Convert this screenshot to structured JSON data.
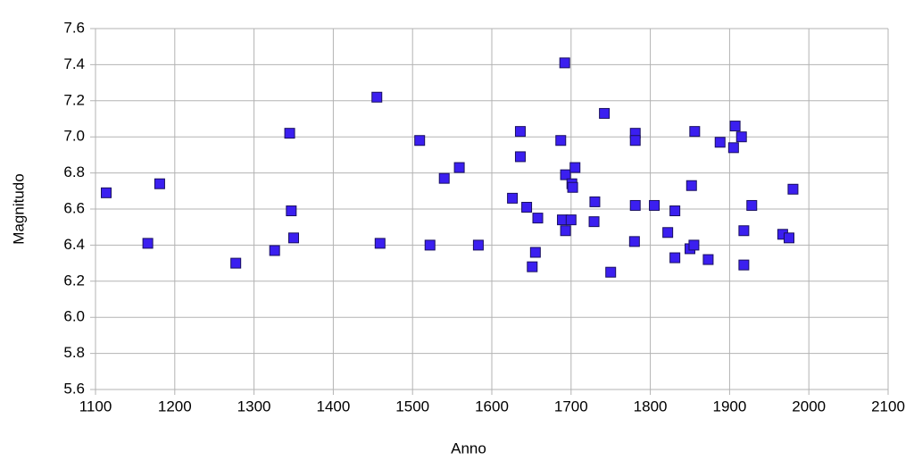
{
  "chart_data": {
    "type": "scatter",
    "x_label": "Anno",
    "y_label": "Magnitudo",
    "color": "#3b1ff0",
    "grid": true,
    "xlim": [
      1100,
      2100
    ],
    "xticks": [
      1100,
      1200,
      1300,
      1400,
      1500,
      1600,
      1700,
      1800,
      1900,
      2000,
      2100
    ],
    "ylim": [
      5.6,
      7.6
    ],
    "yticks": [
      5.6,
      5.8,
      {
        "value": 6,
        "label": "6.0"
      },
      6.2,
      6.4,
      6.6,
      6.8,
      {
        "value": 7,
        "label": "7.0"
      },
      7.2,
      7.4,
      7.6
    ],
    "x": [
      1113.5,
      1166,
      1181,
      1277,
      1326,
      1345,
      1347,
      1350,
      1455,
      1459,
      1509,
      1522,
      1540,
      1559,
      1583,
      1626,
      1636,
      1636,
      1644,
      1651,
      1655,
      1658,
      1687,
      1689,
      1692,
      1693,
      1693,
      1700,
      1701,
      1702,
      1705,
      1730,
      1729,
      1742,
      1750,
      1780,
      1781,
      1781,
      1781,
      1805,
      1822,
      1831,
      1831,
      1850,
      1852,
      1855,
      1856,
      1873,
      1888,
      1905,
      1907,
      1915,
      1918,
      1918,
      1928,
      1967,
      1975,
      1980
    ],
    "values": [
      6.69,
      6.41,
      6.74,
      6.3,
      6.37,
      7.02,
      6.59,
      6.44,
      7.22,
      6.41,
      6.98,
      6.4,
      6.77,
      6.83,
      6.4,
      6.66,
      7.03,
      6.89,
      6.61,
      6.28,
      6.36,
      6.55,
      6.98,
      6.54,
      7.41,
      6.79,
      6.48,
      6.54,
      6.74,
      6.72,
      6.83,
      6.64,
      6.53,
      7.13,
      6.25,
      6.42,
      6.62,
      7.02,
      6.98,
      6.62,
      6.47,
      6.59,
      6.33,
      6.38,
      6.73,
      6.4,
      7.03,
      6.32,
      6.97,
      6.94,
      7.06,
      7.0,
      6.29,
      6.48,
      6.62,
      6.46,
      6.44,
      6.71
    ]
  }
}
